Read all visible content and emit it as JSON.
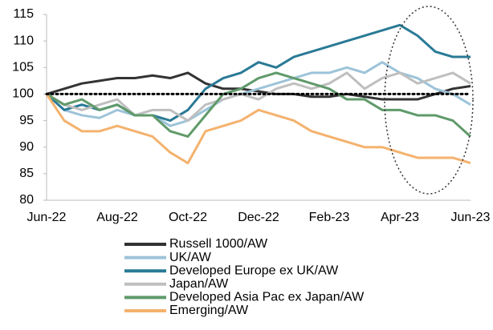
{
  "chart_data": {
    "type": "line",
    "categories": [
      "Jun-22",
      null,
      null,
      null,
      "Aug-22",
      null,
      null,
      null,
      "Oct-22",
      null,
      null,
      null,
      "Dec-22",
      null,
      null,
      null,
      "Feb-23",
      null,
      null,
      null,
      "Apr-23",
      null,
      null,
      null,
      "Jun-23"
    ],
    "series": [
      {
        "name": "Russell 1000/AW",
        "color": "#333333",
        "values": [
          100,
          101,
          102,
          102.5,
          103,
          103,
          103.5,
          103,
          104,
          102,
          101,
          101,
          100.5,
          100,
          100,
          99.5,
          99.5,
          100,
          99.5,
          99,
          99,
          99,
          100,
          101,
          101.5
        ]
      },
      {
        "name": "UK/AW",
        "color": "#9dc3d9",
        "values": [
          100,
          97,
          96,
          95.5,
          97,
          96,
          96,
          94,
          95,
          97,
          99,
          100,
          101,
          102,
          103,
          104,
          104,
          105,
          104,
          106,
          104,
          103,
          101,
          100,
          98
        ]
      },
      {
        "name": "Developed Europe ex UK/AW",
        "color": "#2a7a96",
        "values": [
          100,
          97,
          98,
          97,
          98,
          96,
          96,
          95,
          97,
          101,
          103,
          104,
          106,
          105,
          107,
          108,
          109,
          110,
          111,
          112,
          113,
          111,
          108,
          107,
          107
        ]
      },
      {
        "name": "Japan/AW",
        "color": "#bfbfbf",
        "values": [
          100,
          98,
          97,
          98,
          99,
          96,
          97,
          97,
          95,
          98,
          99,
          100,
          99,
          101,
          102,
          101,
          102,
          104,
          101,
          103,
          104,
          102,
          103,
          104,
          102
        ]
      },
      {
        "name": "Developed Asia Pac ex Japan/AW",
        "color": "#5f9a6a",
        "values": [
          100,
          98,
          99,
          97,
          98,
          96,
          96,
          93,
          92,
          96,
          100,
          101,
          103,
          104,
          103,
          102,
          101,
          99,
          99,
          97,
          97,
          96,
          96,
          95,
          92
        ]
      },
      {
        "name": "Emerging/AW",
        "color": "#f4b26e",
        "values": [
          100,
          95,
          93,
          93,
          94,
          93,
          92,
          89,
          87,
          93,
          94,
          95,
          97,
          96,
          95,
          93,
          92,
          91,
          90,
          90,
          89,
          88,
          88,
          88,
          87
        ]
      }
    ],
    "reference_line": 100,
    "ylim": [
      80,
      115
    ],
    "yticks": [
      80,
      85,
      90,
      95,
      100,
      105,
      110,
      115
    ]
  }
}
